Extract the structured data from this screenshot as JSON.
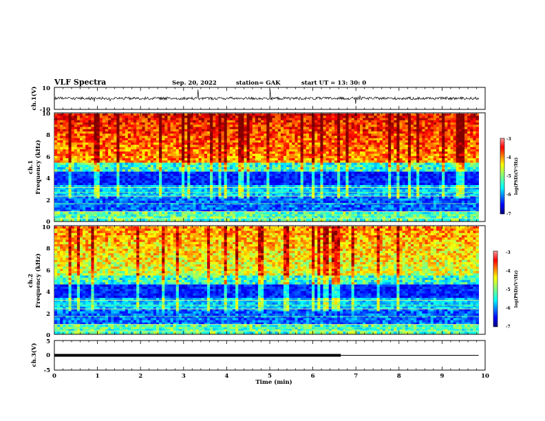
{
  "header": {
    "title": "VLF Spectra",
    "date": "Sep. 20, 2022",
    "station": "station= GAK",
    "start": "start  UT =   13: 30: 0"
  },
  "chart_data": [
    {
      "type": "line",
      "name": "ch1-waveform",
      "ylabel": "ch.1(V)",
      "ylim": [
        -10,
        10
      ],
      "ytick_labels": [
        "10",
        "-10"
      ],
      "baseline": 0,
      "xlim": [
        0,
        10
      ]
    },
    {
      "type": "heatmap",
      "name": "ch1-spectrogram",
      "ylabel": "ch.1\nFrequency (kHz)",
      "ylim": [
        0,
        10
      ],
      "yticks": [
        0,
        2,
        4,
        6,
        8,
        10
      ],
      "xlim": [
        0,
        9.85
      ],
      "colorbar": {
        "label": "log(PSD)(V²/Hz)",
        "range": [
          -7,
          -3
        ],
        "ticks": [
          "-3",
          "-4",
          "-5",
          "-6",
          "-7"
        ]
      }
    },
    {
      "type": "heatmap",
      "name": "ch2-spectrogram",
      "ylabel": "ch.2\nFrequency (kHz)",
      "ylim": [
        0,
        10
      ],
      "yticks": [
        0,
        2,
        4,
        6,
        8,
        10
      ],
      "xlim": [
        0,
        9.85
      ],
      "colorbar": {
        "label": "log(PSD)(V²/Hz)",
        "range": [
          -7,
          -3
        ],
        "ticks": [
          "-3",
          "-4",
          "-5",
          "-6",
          "-7"
        ]
      }
    },
    {
      "type": "line",
      "name": "ch3-signal",
      "ylabel": "ch.3(V)",
      "ylim": [
        -5,
        5
      ],
      "ytick_labels": [
        "5",
        "0",
        "-5"
      ],
      "series": [
        {
          "x": [
            0,
            6.65
          ],
          "y": [
            0,
            0
          ],
          "thick": true
        },
        {
          "x": [
            6.65,
            9.85
          ],
          "y": [
            0,
            0
          ],
          "thick": false
        }
      ],
      "xlim": [
        0,
        10
      ]
    }
  ],
  "xaxis": {
    "label": "Time (min)",
    "xlim": [
      0,
      10
    ],
    "ticks": [
      "0",
      "1",
      "2",
      "3",
      "4",
      "5",
      "6",
      "7",
      "8",
      "9",
      "10"
    ]
  },
  "colors": {
    "jet": [
      "#00007f",
      "#0000ff",
      "#007fff",
      "#00ffff",
      "#7fff7f",
      "#ffff00",
      "#ff7f00",
      "#ff0000",
      "#7f0000"
    ]
  }
}
